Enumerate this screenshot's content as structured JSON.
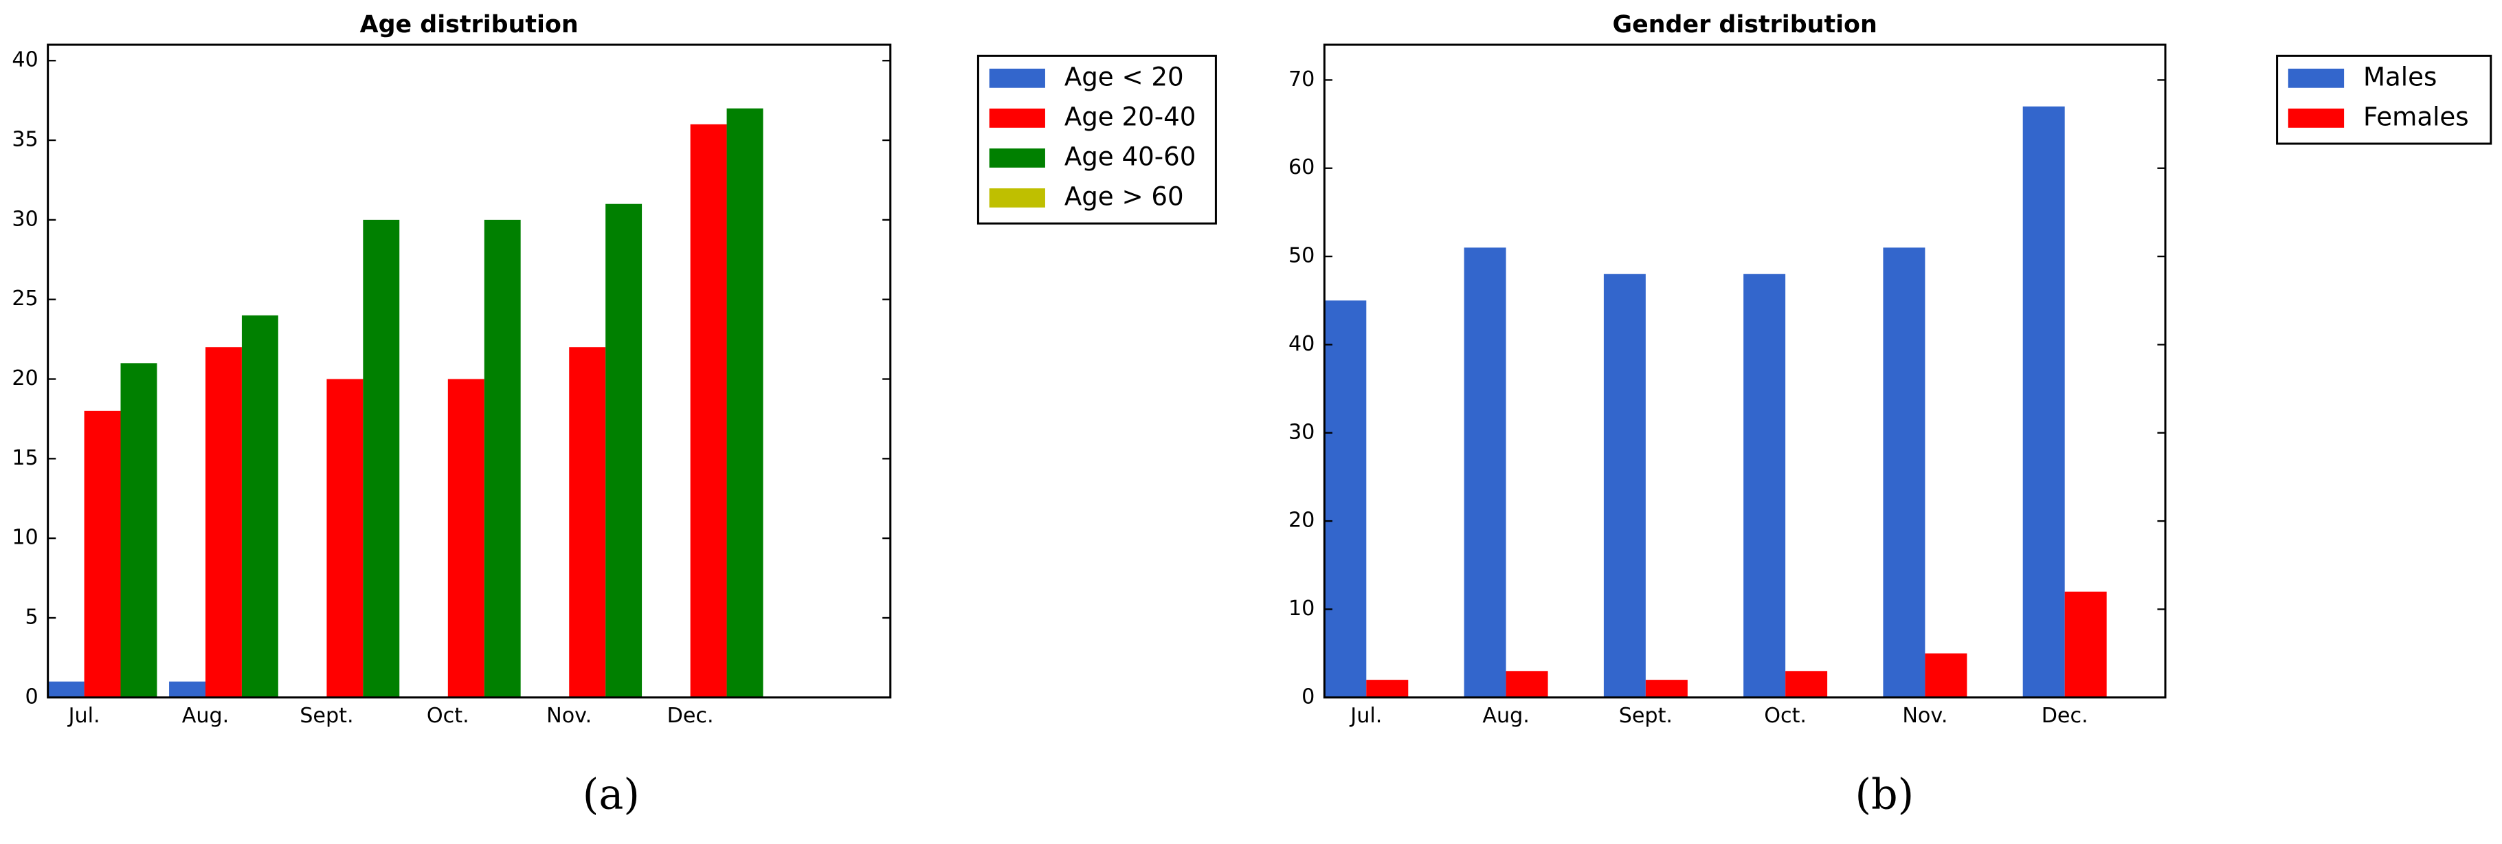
{
  "chart_data": [
    {
      "type": "bar",
      "title": "Age distribution",
      "caption": "(a)",
      "categories": [
        "Jul.",
        "Aug.",
        "Sept.",
        "Oct.",
        "Nov.",
        "Dec."
      ],
      "series": [
        {
          "name": "Age < 20",
          "color": "#3366cc",
          "values": [
            1,
            1,
            0,
            0,
            0,
            0
          ]
        },
        {
          "name": "Age 20-40",
          "color": "#ff0000",
          "values": [
            18,
            22,
            20,
            20,
            22,
            36
          ]
        },
        {
          "name": "Age 40-60",
          "color": "#008000",
          "values": [
            21,
            24,
            30,
            30,
            31,
            37
          ]
        },
        {
          "name": "Age > 60",
          "color": "#bfbf00",
          "values": [
            0,
            0,
            0,
            0,
            0,
            0
          ]
        }
      ],
      "ylim": [
        0,
        41
      ],
      "yticks": [
        0,
        5,
        10,
        15,
        20,
        25,
        30,
        35,
        40
      ],
      "legend": "outside upper right"
    },
    {
      "type": "bar",
      "title": "Gender distribution",
      "caption": "(b)",
      "categories": [
        "Jul.",
        "Aug.",
        "Sept.",
        "Oct.",
        "Nov.",
        "Dec."
      ],
      "series": [
        {
          "name": "Males",
          "color": "#3366cc",
          "values": [
            45,
            51,
            48,
            48,
            51,
            67
          ]
        },
        {
          "name": "Females",
          "color": "#ff0000",
          "values": [
            2,
            3,
            2,
            3,
            5,
            12
          ]
        }
      ],
      "ylim": [
        0,
        74
      ],
      "yticks": [
        0,
        10,
        20,
        30,
        40,
        50,
        60,
        70
      ],
      "legend": "outside upper right"
    }
  ]
}
